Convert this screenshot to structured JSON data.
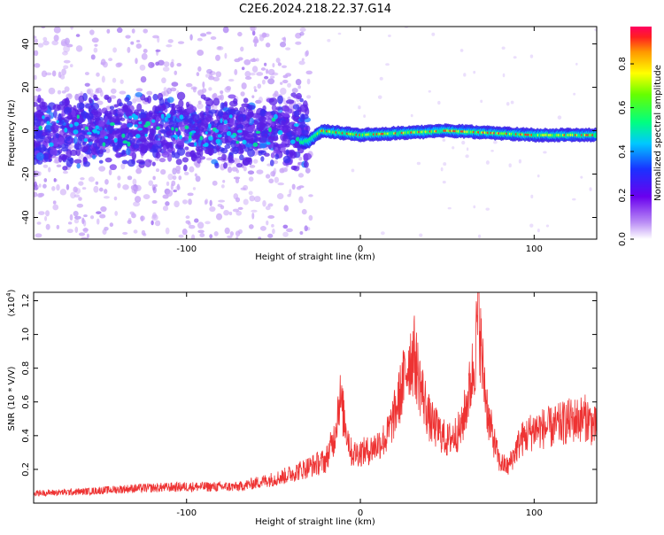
{
  "title": "C2E6.2024.218.22.37.G14",
  "chart_data": [
    {
      "type": "heatmap",
      "xlabel": "Height of straight line (km)",
      "ylabel": "Frequency (Hz)",
      "xlim": [
        -188,
        136
      ],
      "ylim": [
        -50,
        48
      ],
      "x_ticks": [
        -100,
        0,
        100
      ],
      "y_ticks": [
        -40,
        -20,
        0,
        20,
        40
      ],
      "colorbar": {
        "label": "Normalized spectral amplitude",
        "range": [
          0,
          0.97
        ],
        "ticks": [
          0.0,
          0.2,
          0.4,
          0.6,
          0.8
        ]
      },
      "ridge": [
        {
          "x": -30,
          "y": -5
        },
        {
          "x": -22,
          "y": 0
        },
        {
          "x": 0,
          "y": -2
        },
        {
          "x": 50,
          "y": 0
        },
        {
          "x": 100,
          "y": -2
        },
        {
          "x": 136,
          "y": -2
        }
      ]
    },
    {
      "type": "line",
      "xlabel": "Height of straight line (km)",
      "ylabel": "SNR (10 * V/V)",
      "y_scale_note": "(x10",
      "y_scale_exp": "4",
      "y_scale_close": ")",
      "xlim": [
        -188,
        136
      ],
      "ylim": [
        0,
        1.25
      ],
      "x_ticks": [
        -100,
        0,
        100
      ],
      "y_ticks": [
        0.2,
        0.4,
        0.6,
        0.8,
        1.0,
        1.2
      ],
      "color": "#ee3333",
      "series": [
        {
          "name": "SNR",
          "x": [
            -188,
            -160,
            -130,
            -100,
            -70,
            -45,
            -30,
            -20,
            -15,
            -12,
            -5,
            5,
            15,
            20,
            25,
            28,
            31,
            35,
            40,
            50,
            58,
            63,
            66,
            68,
            70,
            74,
            80,
            85,
            92,
            100,
            110,
            120,
            130,
            136
          ],
          "values": [
            0.06,
            0.07,
            0.09,
            0.1,
            0.1,
            0.16,
            0.22,
            0.26,
            0.4,
            0.65,
            0.3,
            0.32,
            0.4,
            0.55,
            0.75,
            0.88,
            0.9,
            0.7,
            0.5,
            0.38,
            0.45,
            0.7,
            0.9,
            1.2,
            0.85,
            0.5,
            0.25,
            0.22,
            0.38,
            0.45,
            0.46,
            0.5,
            0.52,
            0.45
          ]
        }
      ]
    }
  ]
}
